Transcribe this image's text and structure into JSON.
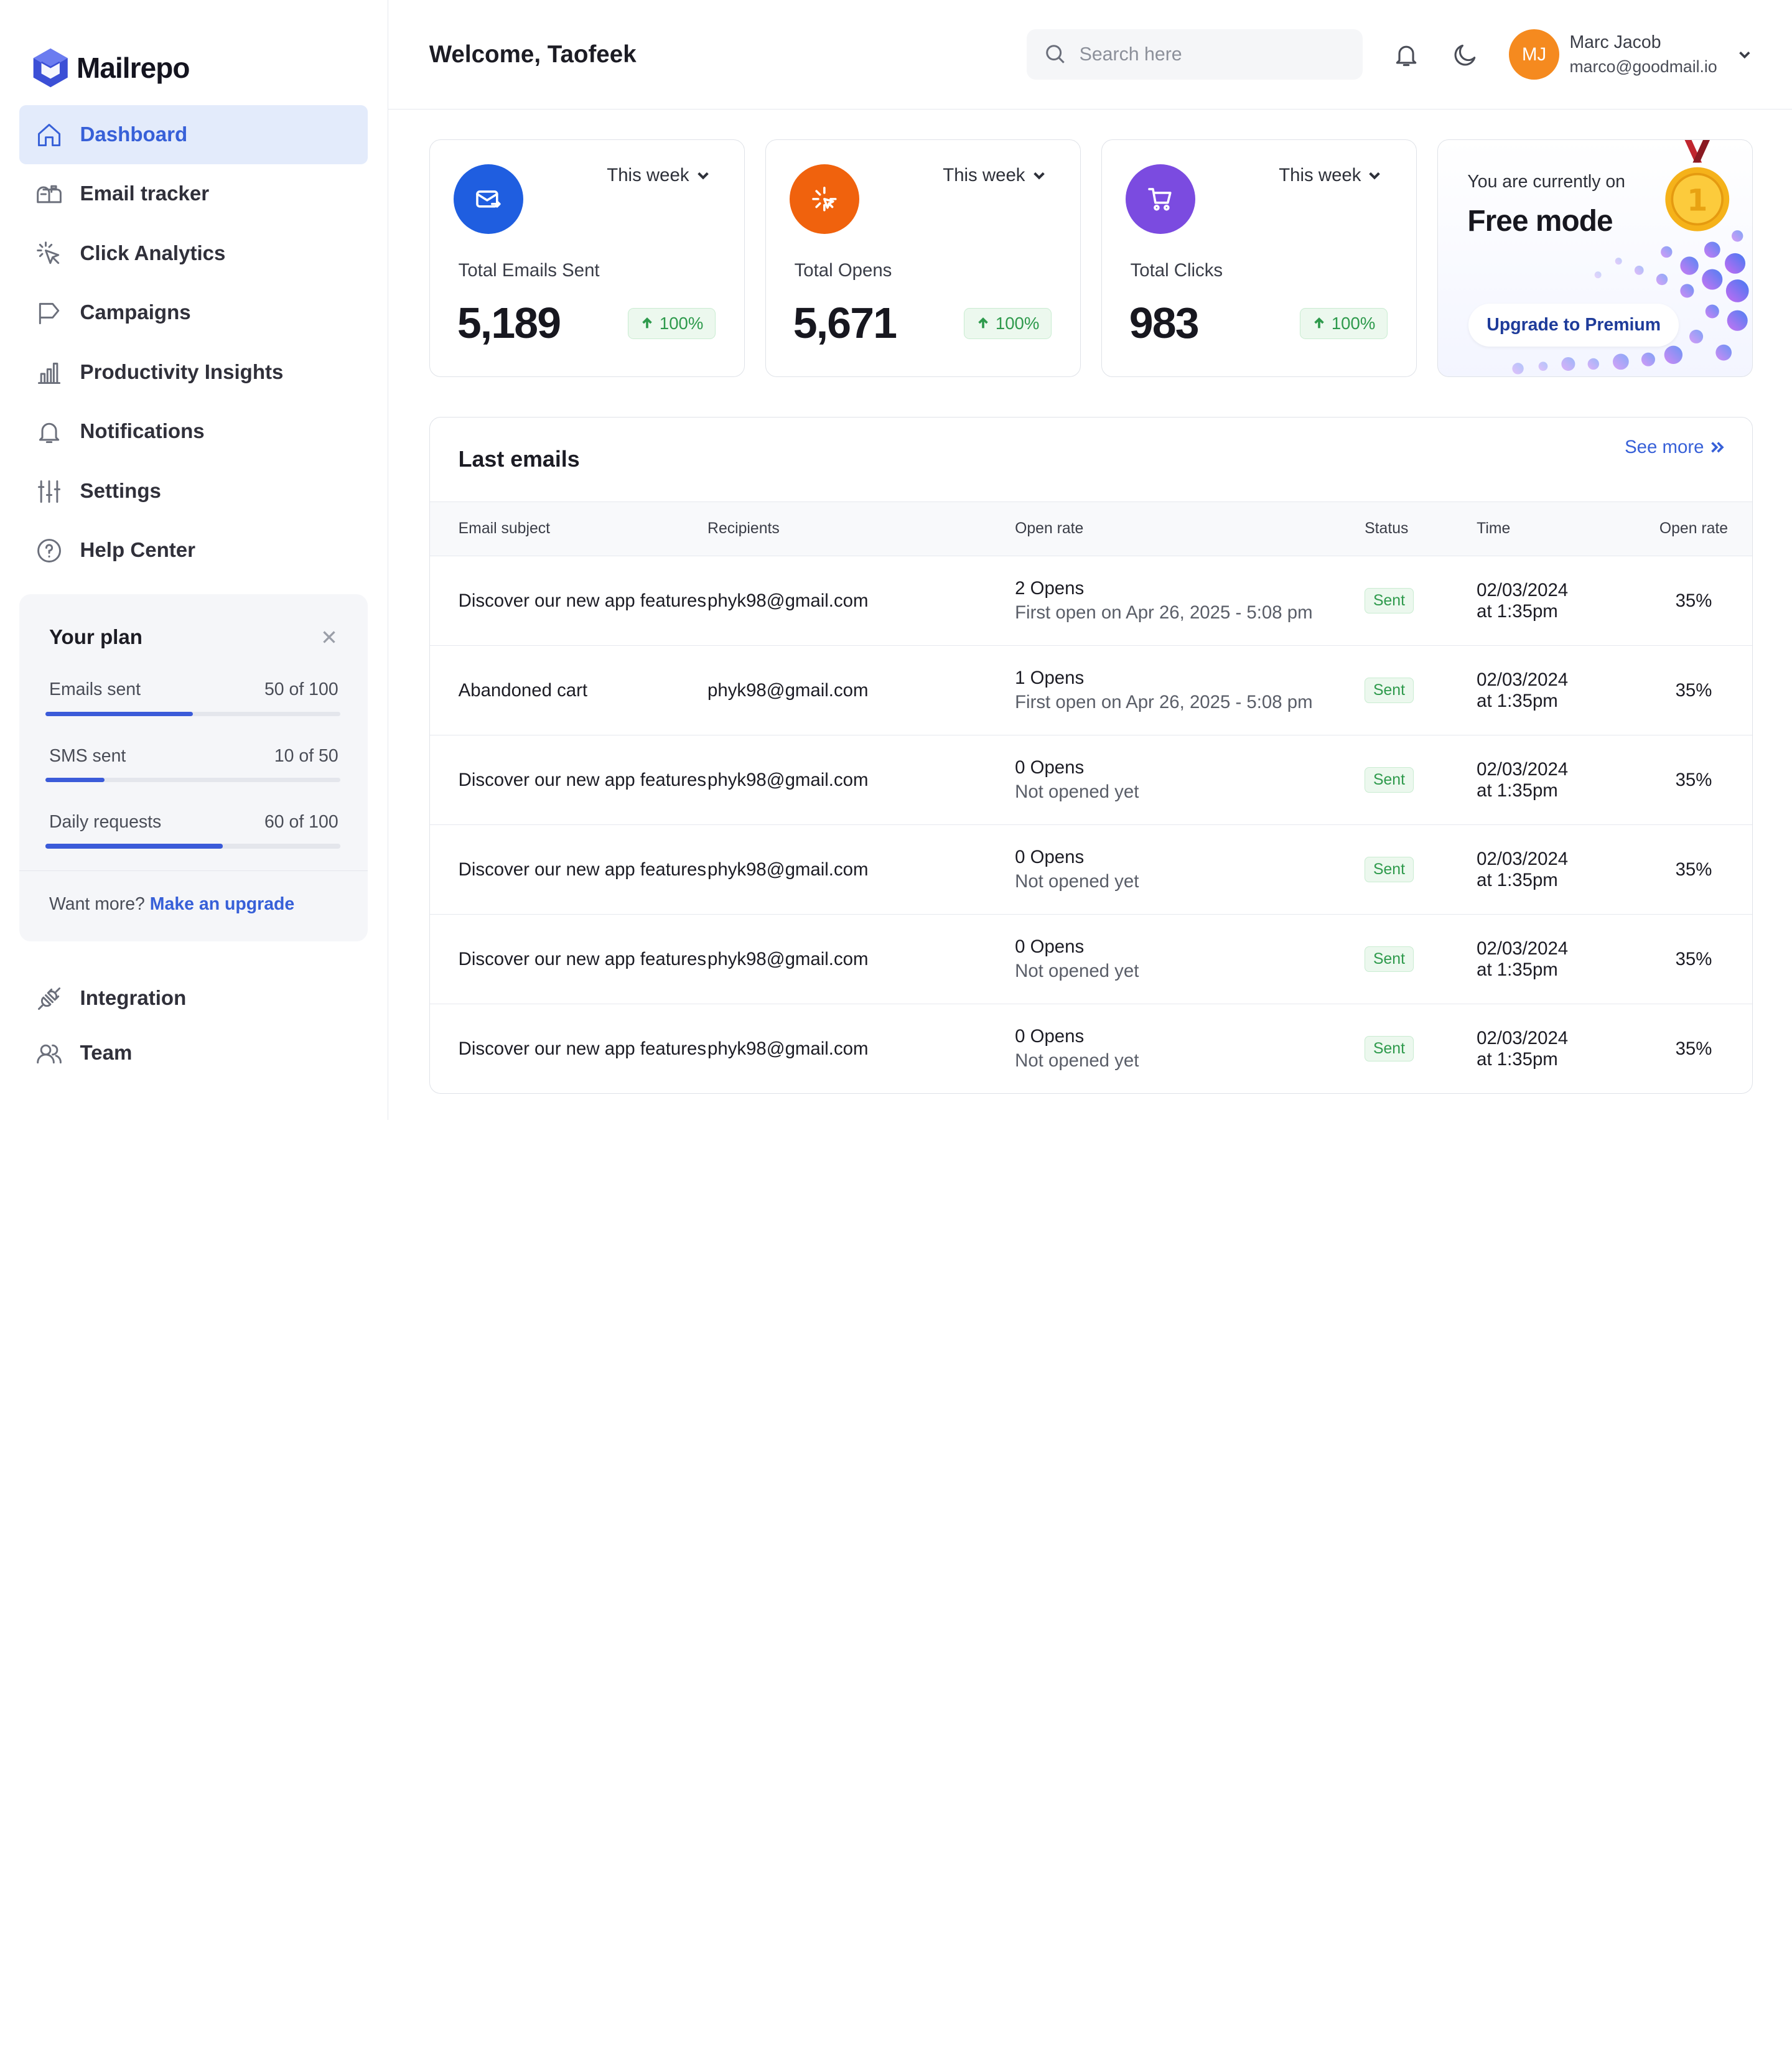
{
  "brand": {
    "name": "Mailrepo",
    "color": "#3b4fd6"
  },
  "sidebar": {
    "items": [
      {
        "label": "Dashboard",
        "icon": "home-icon",
        "active": true
      },
      {
        "label": "Email tracker",
        "icon": "mailbox-icon"
      },
      {
        "label": "Click Analytics",
        "icon": "cursor-click-icon"
      },
      {
        "label": "Campaigns",
        "icon": "flag-icon"
      },
      {
        "label": "Productivity Insights",
        "icon": "bar-chart-icon"
      },
      {
        "label": "Notifications",
        "icon": "bell-icon"
      },
      {
        "label": "Settings",
        "icon": "sliders-icon"
      },
      {
        "label": "Help Center",
        "icon": "help-circle-icon"
      }
    ],
    "bottom_items": [
      {
        "label": "Integration",
        "icon": "plug-icon"
      },
      {
        "label": "Team",
        "icon": "users-icon"
      }
    ]
  },
  "plan": {
    "title": "Your plan",
    "rows": [
      {
        "label": "Emails sent",
        "value": "50 of 100",
        "progress": 0.5
      },
      {
        "label": "SMS sent",
        "value": "10 of 50",
        "progress": 0.2
      },
      {
        "label": "Daily requests",
        "value": "60 of 100",
        "progress": 0.6
      }
    ],
    "footer_text": "Want more?",
    "footer_link": "Make an upgrade"
  },
  "header": {
    "welcome": "Welcome, Taofeek",
    "search_placeholder": "Search here",
    "user": {
      "initials": "MJ",
      "name": "Marc Jacob",
      "email": "marco@goodmail.io",
      "avatar_color": "#f58a1f"
    }
  },
  "stats": [
    {
      "label": "Total Emails Sent",
      "value": "5,189",
      "delta": "100%",
      "period": "This week",
      "icon": "mail-send-icon",
      "color": "#1f5ee0"
    },
    {
      "label": "Total Opens",
      "value": "5,671",
      "delta": "100%",
      "period": "This week",
      "icon": "sparkle-click-icon",
      "color": "#f0620d"
    },
    {
      "label": "Total Clicks",
      "value": "983",
      "delta": "100%",
      "period": "This week",
      "icon": "cart-icon",
      "color": "#7b4be0"
    }
  ],
  "promo": {
    "pre": "You are currently on",
    "mode": "Free mode",
    "button": "Upgrade to Premium",
    "medal_number": "1"
  },
  "emails": {
    "title": "Last emails",
    "see_more": "See more",
    "columns": [
      "Email subject",
      "Recipients",
      "Open rate",
      "Status",
      "Time",
      "Open rate"
    ],
    "rows": [
      {
        "subject": "Discover our new app features",
        "recipient": "phyk98@gmail.com",
        "opens": "2 Opens",
        "open_detail": "First open on Apr 26, 2025 - 5:08 pm",
        "status": "Sent",
        "date": "02/03/2024",
        "time": "at 1:35pm",
        "rate": "35%"
      },
      {
        "subject": "Abandoned cart",
        "recipient": "phyk98@gmail.com",
        "opens": "1 Opens",
        "open_detail": "First open on Apr 26, 2025 - 5:08 pm",
        "status": "Sent",
        "date": "02/03/2024",
        "time": "at 1:35pm",
        "rate": "35%"
      },
      {
        "subject": "Discover our new app features",
        "recipient": "phyk98@gmail.com",
        "opens": "0 Opens",
        "open_detail": "Not opened yet",
        "status": "Sent",
        "date": "02/03/2024",
        "time": "at 1:35pm",
        "rate": "35%"
      },
      {
        "subject": "Discover our new app features",
        "recipient": "phyk98@gmail.com",
        "opens": "0 Opens",
        "open_detail": "Not opened yet",
        "status": "Sent",
        "date": "02/03/2024",
        "time": "at 1:35pm",
        "rate": "35%"
      },
      {
        "subject": "Discover our new app features",
        "recipient": "phyk98@gmail.com",
        "opens": "0 Opens",
        "open_detail": "Not opened yet",
        "status": "Sent",
        "date": "02/03/2024",
        "time": "at 1:35pm",
        "rate": "35%"
      },
      {
        "subject": "Discover our new app features",
        "recipient": "phyk98@gmail.com",
        "opens": "0 Opens",
        "open_detail": "Not opened yet",
        "status": "Sent",
        "date": "02/03/2024",
        "time": "at 1:35pm",
        "rate": "35%"
      }
    ]
  }
}
